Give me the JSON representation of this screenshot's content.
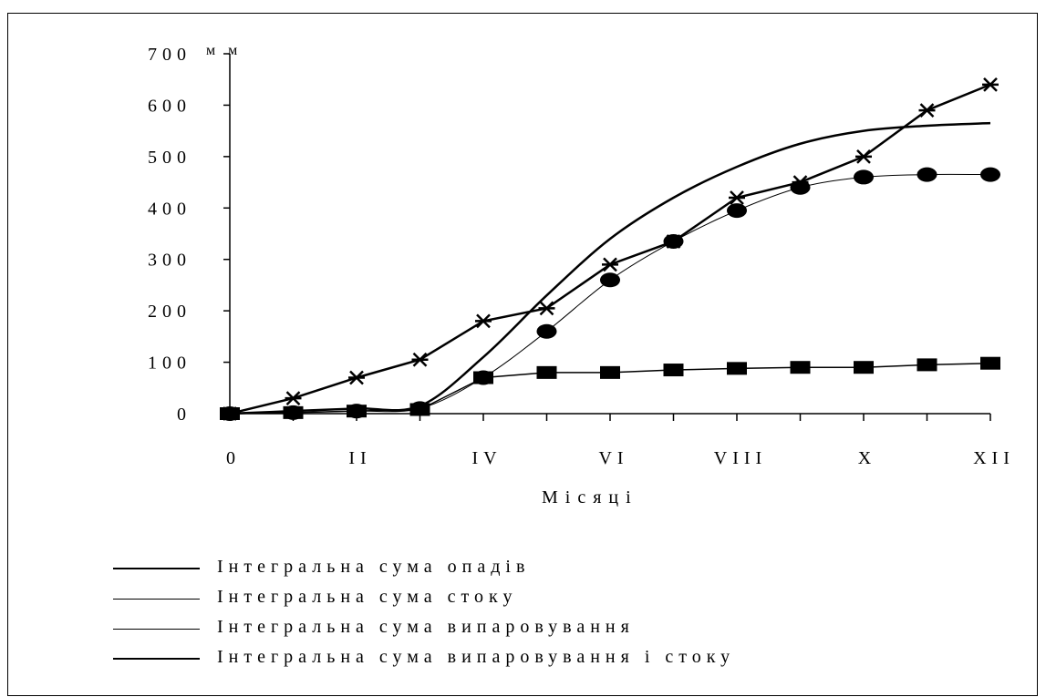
{
  "chart_data": {
    "type": "line",
    "ylabel": "мм",
    "xlabel": "Місяці",
    "ylim": [
      0,
      700
    ],
    "y_ticks": [
      "0",
      "100",
      "200",
      "300",
      "400",
      "500",
      "600",
      "700"
    ],
    "x_ticks": [
      "0",
      "II",
      "IV",
      "VI",
      "VIII",
      "X",
      "XII"
    ],
    "x": [
      0,
      1,
      2,
      3,
      4,
      5,
      6,
      7,
      8,
      9,
      10,
      11,
      12
    ],
    "grid": false,
    "legend_position": "bottom",
    "series": [
      {
        "name": "Інтегральна сума опадів",
        "marker": "asterisk",
        "values": [
          0,
          30,
          70,
          105,
          180,
          205,
          290,
          335,
          420,
          450,
          500,
          590,
          640
        ]
      },
      {
        "name": "Інтегральна сума стоку",
        "marker": "square",
        "values": [
          0,
          2,
          5,
          8,
          70,
          80,
          80,
          85,
          88,
          90,
          90,
          95,
          98
        ]
      },
      {
        "name": "Інтегральна сума випаровування",
        "marker": "circle",
        "values": [
          0,
          2,
          5,
          10,
          70,
          160,
          260,
          335,
          395,
          440,
          460,
          465,
          465
        ]
      },
      {
        "name": "Інтегральна сума випаровування і стоку",
        "marker": "none",
        "values": [
          0,
          5,
          10,
          15,
          110,
          230,
          340,
          420,
          480,
          525,
          550,
          560,
          565
        ]
      }
    ]
  }
}
